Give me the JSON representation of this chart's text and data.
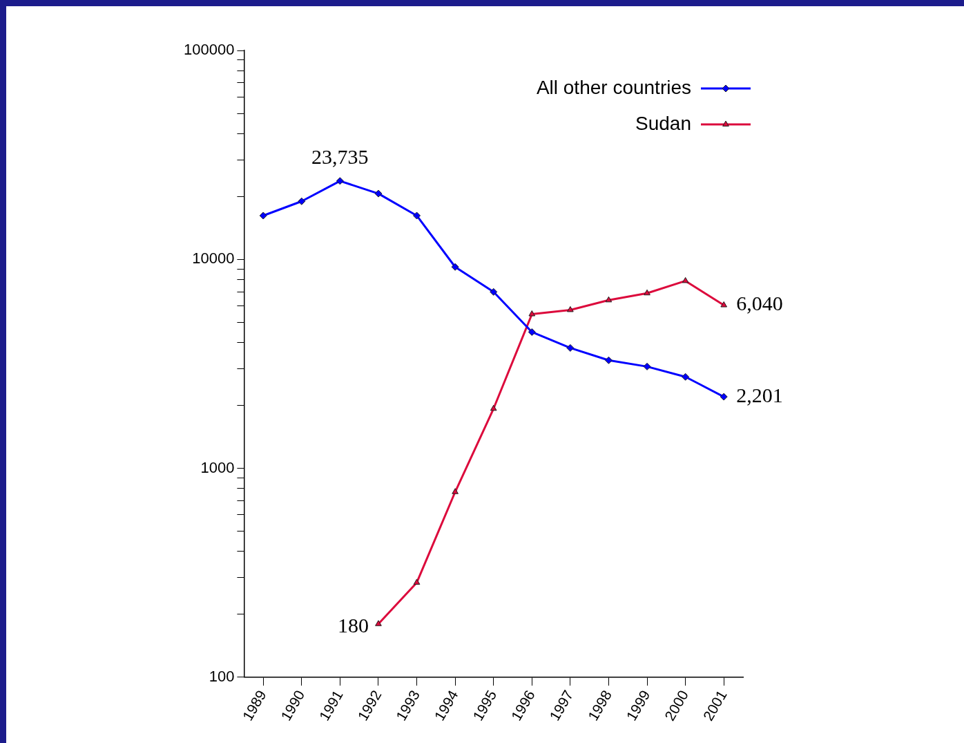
{
  "chart_data": {
    "type": "line",
    "categories": [
      "1989",
      "1990",
      "1991",
      "1992",
      "1993",
      "1994",
      "1995",
      "1996",
      "1997",
      "1998",
      "1999",
      "2000",
      "2001"
    ],
    "series": [
      {
        "name": "All other countries",
        "color": "#0000ff",
        "marker": "diamond",
        "values": [
          16200,
          18970,
          23735,
          20650,
          16200,
          9200,
          6990,
          4490,
          3770,
          3290,
          3070,
          2740,
          2201
        ],
        "value_labels": [
          null,
          null,
          "23,735",
          null,
          null,
          null,
          null,
          null,
          null,
          null,
          null,
          null,
          "2,201"
        ]
      },
      {
        "name": "Sudan",
        "color": "#dc0a3c",
        "marker": "triangle",
        "values": [
          null,
          null,
          null,
          180,
          284,
          771,
          1930,
          5470,
          5730,
          6380,
          6890,
          7890,
          6040
        ],
        "value_labels": [
          null,
          null,
          null,
          "180",
          null,
          null,
          null,
          null,
          null,
          null,
          null,
          null,
          "6,040"
        ]
      }
    ],
    "log": true,
    "ylim": [
      100,
      100000
    ],
    "yticks": [
      100,
      {
        "value": 200,
        "label": null
      },
      {
        "value": 300,
        "label": null
      },
      {
        "value": 400,
        "label": null
      },
      {
        "value": 500,
        "label": null
      },
      {
        "value": 600,
        "label": null
      },
      {
        "value": 700,
        "label": null
      },
      {
        "value": 800,
        "label": null
      },
      {
        "value": 900,
        "label": null
      },
      1000,
      {
        "value": 2000,
        "label": null
      },
      {
        "value": 3000,
        "label": null
      },
      {
        "value": 4000,
        "label": null
      },
      {
        "value": 5000,
        "label": null
      },
      {
        "value": 6000,
        "label": null
      },
      {
        "value": 7000,
        "label": null
      },
      {
        "value": 8000,
        "label": null
      },
      {
        "value": 9000,
        "label": null
      },
      10000,
      {
        "value": 20000,
        "label": null
      },
      {
        "value": 30000,
        "label": null
      },
      {
        "value": 40000,
        "label": null
      },
      {
        "value": 50000,
        "label": null
      },
      {
        "value": 60000,
        "label": null
      },
      {
        "value": 70000,
        "label": null
      },
      {
        "value": 80000,
        "label": null
      },
      {
        "value": 90000,
        "label": null
      },
      100000
    ],
    "grid": false,
    "legend": "top right",
    "line_style": "solid"
  }
}
